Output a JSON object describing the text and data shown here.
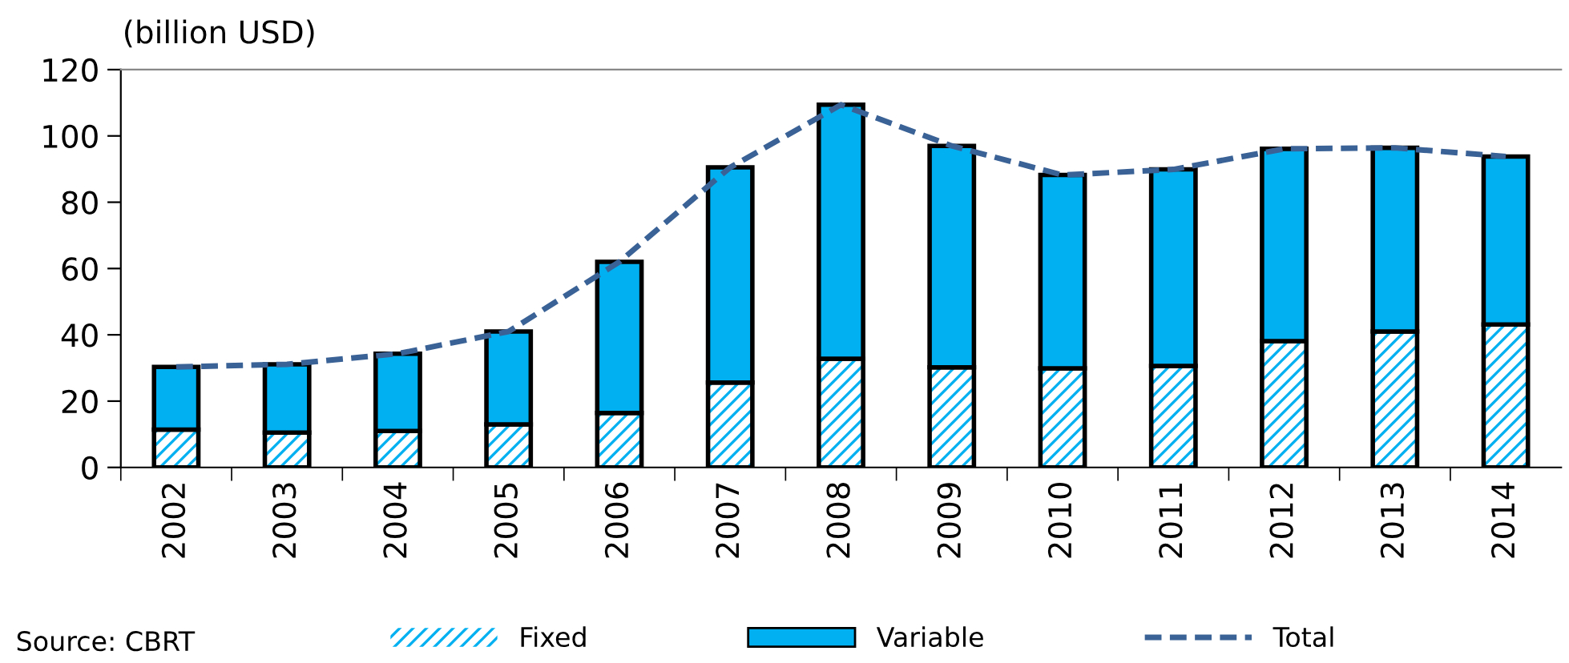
{
  "chart_data": {
    "type": "bar",
    "stacked": true,
    "ylabel": "(billion USD)",
    "categories": [
      "2002",
      "2003",
      "2004",
      "2005",
      "2006",
      "2007",
      "2008",
      "2009",
      "2010",
      "2011",
      "2012",
      "2013",
      "2014"
    ],
    "series": [
      {
        "name": "Fixed",
        "color": "#00b0f0",
        "values": [
          11.4,
          10.5,
          11.0,
          13.0,
          16.4,
          25.6,
          32.8,
          30.2,
          29.9,
          30.6,
          38.1,
          41.0,
          43.1
        ]
      },
      {
        "name": "Variable",
        "color": "#00b0f0",
        "values": [
          18.9,
          20.6,
          23.3,
          28.0,
          45.6,
          64.9,
          76.6,
          66.8,
          58.3,
          59.3,
          58.0,
          55.4,
          50.7
        ]
      },
      {
        "name": "Total",
        "type": "line",
        "color": "#3a6296",
        "line_style": "dashed",
        "values": [
          30.3,
          31.1,
          34.3,
          41.0,
          62.0,
          90.5,
          109.4,
          97.0,
          88.2,
          89.9,
          96.1,
          96.4,
          93.8
        ]
      }
    ],
    "ylim": [
      0,
      120
    ],
    "yticks": [
      0,
      20,
      40,
      60,
      80,
      100,
      120
    ],
    "grid": false,
    "legend": "bottom",
    "annotations": [
      "Source: CBRT"
    ]
  }
}
